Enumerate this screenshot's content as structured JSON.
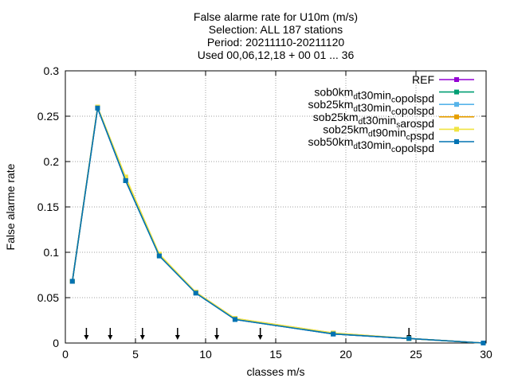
{
  "chart_data": {
    "type": "line",
    "title_lines": [
      "False alarme rate  for U10m (m/s)",
      "Selection: ALL    187 stations",
      "Period: 20211110-20211120",
      "Used 00,06,12,18 + 00 01 ... 36"
    ],
    "xlabel": "classes m/s",
    "ylabel": "False alarme rate",
    "xlim": [
      0,
      30
    ],
    "ylim": [
      0,
      0.3
    ],
    "xticks": [
      {
        "value": 0,
        "label": "0"
      },
      {
        "value": 5,
        "label": "5"
      },
      {
        "value": 10,
        "label": "10"
      },
      {
        "value": 15,
        "label": "15"
      },
      {
        "value": 20,
        "label": "20"
      },
      {
        "value": 25,
        "label": "25"
      },
      {
        "value": 30,
        "label": "30"
      }
    ],
    "yticks": [
      {
        "value": 0,
        "label": "0"
      },
      {
        "value": 0.05,
        "label": "0.05"
      },
      {
        "value": 0.1,
        "label": "0.1"
      },
      {
        "value": 0.15,
        "label": "0.15"
      },
      {
        "value": 0.2,
        "label": "0.2"
      },
      {
        "value": 0.25,
        "label": "0.25"
      },
      {
        "value": 0.3,
        "label": "0.3"
      }
    ],
    "grid": true,
    "legend_position": "top-right",
    "class_markers_x": [
      1.5,
      3.2,
      5.5,
      8.0,
      10.8,
      13.9,
      24.5
    ],
    "series": [
      {
        "name": "REF",
        "color": "#9400d3",
        "x": [
          0.5,
          2.3,
          4.3,
          6.7,
          9.3,
          12.1,
          19.1,
          24.5,
          29.8
        ],
        "y": [
          0.068,
          0.259,
          0.179,
          0.097,
          0.056,
          0.026,
          0.01,
          0.005,
          0.0
        ]
      },
      {
        "name": "sob0km_d t30min_c opolspd",
        "name_parts": [
          {
            "t": "sob0km"
          },
          {
            "t": "d",
            "sub": true
          },
          {
            "t": "t30min"
          },
          {
            "t": "c",
            "sub": true
          },
          {
            "t": "opolspd"
          }
        ],
        "color": "#009e73",
        "x": [
          0.5,
          2.3,
          4.3,
          6.7,
          9.3,
          12.1,
          19.1,
          24.5,
          29.8
        ],
        "y": [
          0.068,
          0.259,
          0.179,
          0.096,
          0.056,
          0.026,
          0.01,
          0.005,
          0.0
        ]
      },
      {
        "name": "sob25km_d t30min_c opolspd",
        "name_parts": [
          {
            "t": "sob25km"
          },
          {
            "t": "d",
            "sub": true
          },
          {
            "t": "t30min"
          },
          {
            "t": "c",
            "sub": true
          },
          {
            "t": "opolspd"
          }
        ],
        "color": "#56b4e9",
        "x": [
          0.5,
          2.3,
          4.3,
          6.7,
          9.3,
          12.1,
          19.1,
          24.5,
          29.8
        ],
        "y": [
          0.068,
          0.259,
          0.18,
          0.097,
          0.056,
          0.026,
          0.01,
          0.005,
          0.0
        ]
      },
      {
        "name": "sob25km_d t30min_s arospd",
        "name_parts": [
          {
            "t": "sob25km"
          },
          {
            "t": "d",
            "sub": true
          },
          {
            "t": "t30min"
          },
          {
            "t": "s",
            "sub": true
          },
          {
            "t": "arospd"
          }
        ],
        "color": "#e69f00",
        "x": [
          0.5,
          2.3,
          4.3,
          6.7,
          9.3,
          12.1,
          19.1,
          24.5,
          29.8
        ],
        "y": [
          0.068,
          0.26,
          0.181,
          0.097,
          0.056,
          0.027,
          0.011,
          0.005,
          0.0
        ]
      },
      {
        "name": "sob25km_d t90min_c pspd",
        "name_parts": [
          {
            "t": "sob25km"
          },
          {
            "t": "d",
            "sub": true
          },
          {
            "t": "t90min"
          },
          {
            "t": "c",
            "sub": true
          },
          {
            "t": "pspd"
          }
        ],
        "color": "#f0e442",
        "x": [
          0.5,
          2.3,
          4.3,
          6.7,
          9.3,
          12.1,
          19.1,
          24.5,
          29.8
        ],
        "y": [
          0.068,
          0.26,
          0.183,
          0.098,
          0.056,
          0.027,
          0.011,
          0.005,
          0.0
        ]
      },
      {
        "name": "sob50km_d t30min_c opolspd",
        "name_parts": [
          {
            "t": "sob50km"
          },
          {
            "t": "d",
            "sub": true
          },
          {
            "t": "t30min"
          },
          {
            "t": "c",
            "sub": true
          },
          {
            "t": "opolspd"
          }
        ],
        "color": "#0072b2",
        "x": [
          0.5,
          2.3,
          4.3,
          6.7,
          9.3,
          12.1,
          19.1,
          24.5,
          29.8
        ],
        "y": [
          0.068,
          0.259,
          0.179,
          0.096,
          0.055,
          0.026,
          0.01,
          0.005,
          0.0
        ]
      }
    ]
  }
}
